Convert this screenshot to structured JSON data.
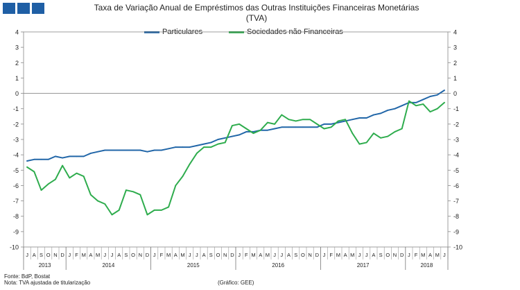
{
  "brand": {
    "square_color": "#1f5fa5"
  },
  "header": {
    "title_line1": "Taxa de Variação Anual de Empréstimos das Outras Instituições Financeiras Monetárias",
    "title_line2": "(TVA)"
  },
  "footer": {
    "source": "Fonte: BdP, Bostat",
    "note": "Nota: TVA ajustada de titularização",
    "credit": "(Gráfico: GEE)"
  },
  "chart_data": {
    "type": "line",
    "title": "Taxa de Variação Anual de Empréstimos das Outras Instituições Financeiras Monetárias (TVA)",
    "ylim": [
      -10,
      4
    ],
    "yticks": [
      4,
      3,
      2,
      1,
      0,
      -1,
      -2,
      -3,
      -4,
      -5,
      -6,
      -7,
      -8,
      -9,
      -10
    ],
    "ytick_labels": [
      "4",
      "3",
      "2",
      "1",
      "0",
      "-1",
      "-2",
      "-3",
      "-4",
      "-5",
      "-6",
      "-7",
      "-8",
      "-9",
      "-10"
    ],
    "secondary_axis": true,
    "grid": false,
    "legend_position": "top",
    "x": [
      "2013-07",
      "2013-08",
      "2013-09",
      "2013-10",
      "2013-11",
      "2013-12",
      "2014-01",
      "2014-02",
      "2014-03",
      "2014-04",
      "2014-05",
      "2014-06",
      "2014-07",
      "2014-08",
      "2014-09",
      "2014-10",
      "2014-11",
      "2014-12",
      "2015-01",
      "2015-02",
      "2015-03",
      "2015-04",
      "2015-05",
      "2015-06",
      "2015-07",
      "2015-08",
      "2015-09",
      "2015-10",
      "2015-11",
      "2015-12",
      "2016-01",
      "2016-02",
      "2016-03",
      "2016-04",
      "2016-05",
      "2016-06",
      "2016-07",
      "2016-08",
      "2016-09",
      "2016-10",
      "2016-11",
      "2016-12",
      "2017-01",
      "2017-02",
      "2017-03",
      "2017-04",
      "2017-05",
      "2017-06",
      "2017-07",
      "2017-08",
      "2017-09",
      "2017-10",
      "2017-11",
      "2017-12",
      "2018-01",
      "2018-02",
      "2018-03",
      "2018-04",
      "2018-05",
      "2018-06"
    ],
    "month_labels": [
      "J",
      "A",
      "S",
      "O",
      "N",
      "D",
      "J",
      "F",
      "M",
      "A",
      "M",
      "J",
      "J",
      "A",
      "S",
      "O",
      "N",
      "D",
      "J",
      "F",
      "M",
      "A",
      "M",
      "J",
      "J",
      "A",
      "S",
      "O",
      "N",
      "D",
      "J",
      "F",
      "M",
      "A",
      "M",
      "J",
      "J",
      "A",
      "S",
      "O",
      "N",
      "D",
      "J",
      "F",
      "M",
      "A",
      "M",
      "J",
      "J",
      "A",
      "S",
      "O",
      "N",
      "D",
      "J",
      "F",
      "M",
      "A",
      "M",
      "J"
    ],
    "years": [
      {
        "label": "2013",
        "start": 0,
        "count": 6
      },
      {
        "label": "2014",
        "start": 6,
        "count": 12
      },
      {
        "label": "2015",
        "start": 18,
        "count": 12
      },
      {
        "label": "2016",
        "start": 30,
        "count": 12
      },
      {
        "label": "2017",
        "start": 42,
        "count": 12
      },
      {
        "label": "2018",
        "start": 54,
        "count": 6
      }
    ],
    "series": [
      {
        "name": "Particulares",
        "color": "#2166a8",
        "values": [
          -4.4,
          -4.3,
          -4.3,
          -4.3,
          -4.1,
          -4.2,
          -4.1,
          -4.1,
          -4.1,
          -3.9,
          -3.8,
          -3.7,
          -3.7,
          -3.7,
          -3.7,
          -3.7,
          -3.7,
          -3.8,
          -3.7,
          -3.7,
          -3.6,
          -3.5,
          -3.5,
          -3.5,
          -3.4,
          -3.3,
          -3.2,
          -3.0,
          -2.9,
          -2.8,
          -2.7,
          -2.5,
          -2.5,
          -2.4,
          -2.4,
          -2.3,
          -2.2,
          -2.2,
          -2.2,
          -2.2,
          -2.2,
          -2.2,
          -2.0,
          -2.0,
          -1.9,
          -1.8,
          -1.7,
          -1.6,
          -1.6,
          -1.4,
          -1.3,
          -1.1,
          -1.0,
          -0.8,
          -0.6,
          -0.6,
          -0.4,
          -0.2,
          -0.1,
          0.2
        ]
      },
      {
        "name": "Sociedades não Financeiras",
        "color": "#2eac4d",
        "values": [
          -4.8,
          -5.1,
          -6.3,
          -5.9,
          -5.6,
          -4.7,
          -5.5,
          -5.2,
          -5.4,
          -6.6,
          -7.0,
          -7.2,
          -7.9,
          -7.6,
          -6.3,
          -6.4,
          -6.6,
          -7.9,
          -7.6,
          -7.6,
          -7.4,
          -6.0,
          -5.4,
          -4.6,
          -3.9,
          -3.5,
          -3.5,
          -3.3,
          -3.2,
          -2.1,
          -2.0,
          -2.3,
          -2.6,
          -2.4,
          -1.9,
          -2.0,
          -1.4,
          -1.7,
          -1.8,
          -1.7,
          -1.7,
          -2.0,
          -2.3,
          -2.2,
          -1.8,
          -1.7,
          -2.6,
          -3.3,
          -3.2,
          -2.6,
          -2.9,
          -2.8,
          -2.5,
          -2.3,
          -0.5,
          -0.8,
          -0.7,
          -1.2,
          -1.0,
          -0.6
        ]
      }
    ]
  }
}
